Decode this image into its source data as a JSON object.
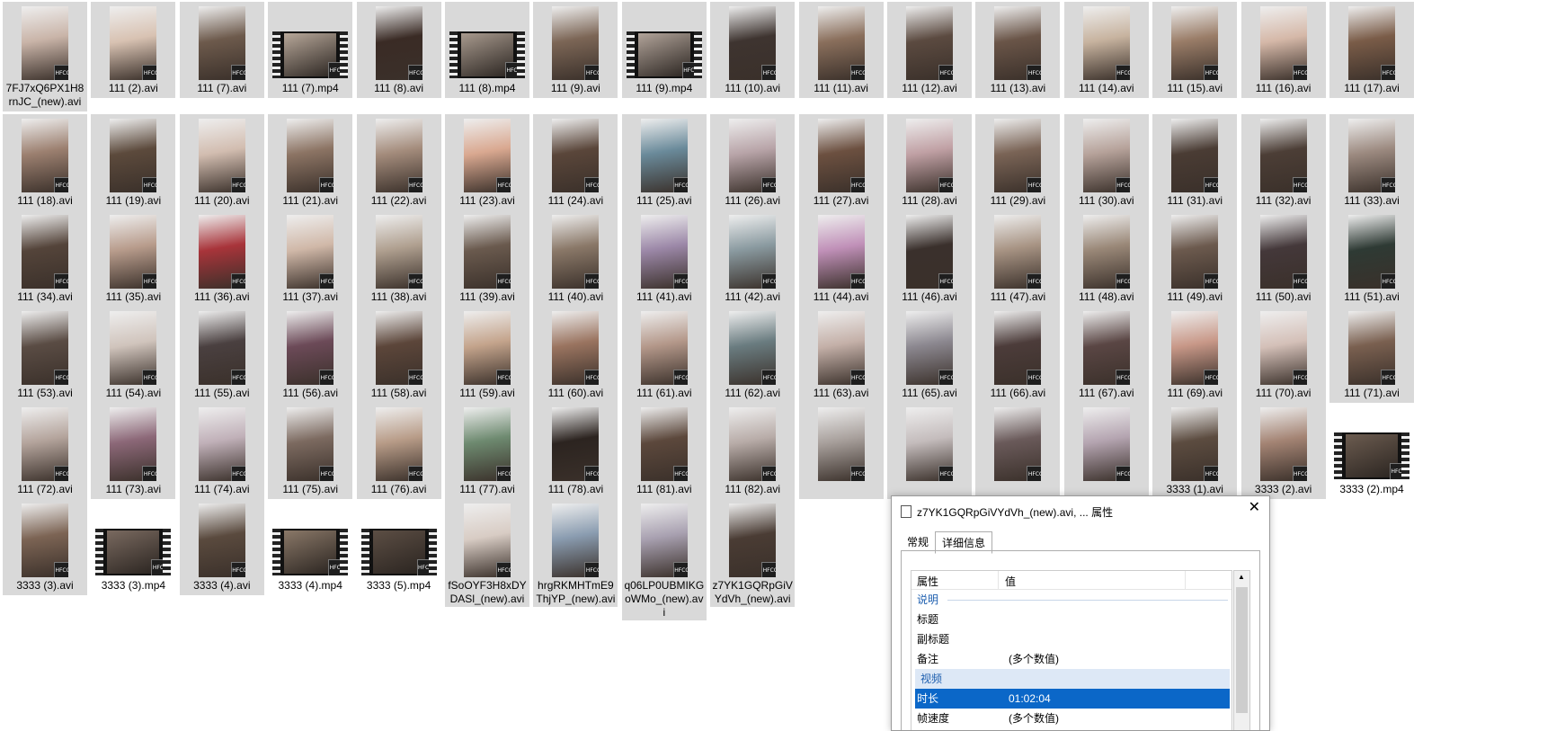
{
  "files": [
    {
      "label": "7FJ7xQ6PX1H8rnJC_(new).avi",
      "kind": "avi",
      "color": "#c9b4a8"
    },
    {
      "label": "111 (2).avi",
      "kind": "avi",
      "color": "#d8c2b2"
    },
    {
      "label": "111 (7).avi",
      "kind": "avi",
      "color": "#6d5a4c"
    },
    {
      "label": "111 (7).mp4",
      "kind": "mp4",
      "color": "#b8a89a"
    },
    {
      "label": "111 (8).avi",
      "kind": "avi",
      "color": "#3a2b25"
    },
    {
      "label": "111 (8).mp4",
      "kind": "mp4",
      "color": "#a89a8e"
    },
    {
      "label": "111 (9).avi",
      "kind": "avi",
      "color": "#7c6656"
    },
    {
      "label": "111 (9).mp4",
      "kind": "mp4",
      "color": "#b2a49a"
    },
    {
      "label": "111 (10).avi",
      "kind": "avi",
      "color": "#3e3430"
    },
    {
      "label": "111 (11).avi",
      "kind": "avi",
      "color": "#8a6f5c"
    },
    {
      "label": "111 (12).avi",
      "kind": "avi",
      "color": "#5b4a40"
    },
    {
      "label": "111 (13).avi",
      "kind": "avi",
      "color": "#6a5548"
    },
    {
      "label": "111 (14).avi",
      "kind": "avi",
      "color": "#c7b39f"
    },
    {
      "label": "111 (15).avi",
      "kind": "avi",
      "color": "#9a7d68"
    },
    {
      "label": "111 (16).avi",
      "kind": "avi",
      "color": "#d5b8a8"
    },
    {
      "label": "111 (17).avi",
      "kind": "avi",
      "color": "#7a5c48"
    },
    {
      "label": "111 (18).avi",
      "kind": "avi",
      "color": "#9c8070"
    },
    {
      "label": "111 (19).avi",
      "kind": "avi",
      "color": "#5c4a3c"
    },
    {
      "label": "111 (20).avi",
      "kind": "avi",
      "color": "#d2bdb0"
    },
    {
      "label": "111 (21).avi",
      "kind": "avi",
      "color": "#8c7464"
    },
    {
      "label": "111 (22).avi",
      "kind": "avi",
      "color": "#a48c7c"
    },
    {
      "label": "111 (23).avi",
      "kind": "avi",
      "color": "#d9a890"
    },
    {
      "label": "111 (24).avi",
      "kind": "avi",
      "color": "#5a463a"
    },
    {
      "label": "111 (25).avi",
      "kind": "avi",
      "color": "#6a8a9a"
    },
    {
      "label": "111 (26).avi",
      "kind": "avi",
      "color": "#b8a4a8"
    },
    {
      "label": "111 (27).avi",
      "kind": "avi",
      "color": "#6c5040"
    },
    {
      "label": "111 (28).avi",
      "kind": "avi",
      "color": "#c0a0a4"
    },
    {
      "label": "111 (29).avi",
      "kind": "avi",
      "color": "#7a6456"
    },
    {
      "label": "111 (30).avi",
      "kind": "avi",
      "color": "#b6a29a"
    },
    {
      "label": "111 (31).avi",
      "kind": "avi",
      "color": "#4a3c34"
    },
    {
      "label": "111 (32).avi",
      "kind": "avi",
      "color": "#4c3e36"
    },
    {
      "label": "111 (33).avi",
      "kind": "avi",
      "color": "#9c8a80"
    },
    {
      "label": "111 (34).avi",
      "kind": "avi",
      "color": "#54443a"
    },
    {
      "label": "111 (35).avi",
      "kind": "avi",
      "color": "#b89c8c"
    },
    {
      "label": "111 (36).avi",
      "kind": "avi",
      "color": "#a8343a"
    },
    {
      "label": "111 (37).avi",
      "kind": "avi",
      "color": "#d0b8a8"
    },
    {
      "label": "111 (38).avi",
      "kind": "avi",
      "color": "#b0a090"
    },
    {
      "label": "111 (39).avi",
      "kind": "avi",
      "color": "#6a5a4e"
    },
    {
      "label": "111 (40).avi",
      "kind": "avi",
      "color": "#8a7868"
    },
    {
      "label": "111 (41).avi",
      "kind": "avi",
      "color": "#9c88a8"
    },
    {
      "label": "111 (42).avi",
      "kind": "avi",
      "color": "#8a9aa0"
    },
    {
      "label": "111 (44).avi",
      "kind": "avi",
      "color": "#c090b8"
    },
    {
      "label": "111 (46).avi",
      "kind": "avi",
      "color": "#3a302c"
    },
    {
      "label": "111 (47).avi",
      "kind": "avi",
      "color": "#a89484"
    },
    {
      "label": "111 (48).avi",
      "kind": "avi",
      "color": "#9a8878"
    },
    {
      "label": "111 (49).avi",
      "kind": "avi",
      "color": "#6c5a4e"
    },
    {
      "label": "111 (50).avi",
      "kind": "avi",
      "color": "#44383a"
    },
    {
      "label": "111 (51).avi",
      "kind": "avi",
      "color": "#2e3a34"
    },
    {
      "label": "111 (53).avi",
      "kind": "avi",
      "color": "#5a4c44"
    },
    {
      "label": "111 (54).avi",
      "kind": "avi",
      "color": "#d0c4bc"
    },
    {
      "label": "111 (55).avi",
      "kind": "avi",
      "color": "#4a4040"
    },
    {
      "label": "111 (56).avi",
      "kind": "avi",
      "color": "#6c4a58"
    },
    {
      "label": "111 (58).avi",
      "kind": "avi",
      "color": "#5c463a"
    },
    {
      "label": "111 (59).avi",
      "kind": "avi",
      "color": "#c4a48c"
    },
    {
      "label": "111 (60).avi",
      "kind": "avi",
      "color": "#9a7460"
    },
    {
      "label": "111 (61).avi",
      "kind": "avi",
      "color": "#b4988a"
    },
    {
      "label": "111 (62).avi",
      "kind": "avi",
      "color": "#6a7c80"
    },
    {
      "label": "111 (63).avi",
      "kind": "avi",
      "color": "#c4b0a8"
    },
    {
      "label": "111 (65).avi",
      "kind": "avi",
      "color": "#8c8890"
    },
    {
      "label": "111 (66).avi",
      "kind": "avi",
      "color": "#4c3c3a"
    },
    {
      "label": "111 (67).avi",
      "kind": "avi",
      "color": "#5a4644"
    },
    {
      "label": "111 (69).avi",
      "kind": "avi",
      "color": "#c89888"
    },
    {
      "label": "111 (70).avi",
      "kind": "avi",
      "color": "#d4c0b8"
    },
    {
      "label": "111 (71).avi",
      "kind": "avi",
      "color": "#7a6050"
    },
    {
      "label": "111 (72).avi",
      "kind": "avi",
      "color": "#b4a49c"
    },
    {
      "label": "111 (73).avi",
      "kind": "avi",
      "color": "#8c6878"
    },
    {
      "label": "111 (74).avi",
      "kind": "avi",
      "color": "#c0b0b8"
    },
    {
      "label": "111 (75).avi",
      "kind": "avi",
      "color": "#7c6a60"
    },
    {
      "label": "111 (76).avi",
      "kind": "avi",
      "color": "#b89c88"
    },
    {
      "label": "111 (77).avi",
      "kind": "avi",
      "color": "#6e8a70"
    },
    {
      "label": "111 (78).avi",
      "kind": "avi",
      "color": "#2c2420"
    },
    {
      "label": "111 (81).avi",
      "kind": "avi",
      "color": "#5c483c"
    },
    {
      "label": "111 (82).avi",
      "kind": "avi",
      "color": "#b8aca8"
    },
    {
      "label": "",
      "kind": "avi",
      "color": "#a8a09c"
    },
    {
      "label": "",
      "kind": "avi",
      "color": "#c4bcbc"
    },
    {
      "label": "",
      "kind": "avi",
      "color": "#6a5a5a"
    },
    {
      "label": "",
      "kind": "avi",
      "color": "#b4a4b0"
    },
    {
      "label": "3333 (1).avi",
      "kind": "avi",
      "color": "#5c4c40"
    },
    {
      "label": "3333 (2).avi",
      "kind": "avi",
      "color": "#a48474"
    },
    {
      "label": "3333 (2).mp4",
      "kind": "mp4",
      "color": "#6c5c50"
    },
    {
      "label": "3333 (3).avi",
      "kind": "avi",
      "color": "#7c6454"
    },
    {
      "label": "3333 (3).mp4",
      "kind": "mp4",
      "color": "#7a6a60"
    },
    {
      "label": "3333 (4).avi",
      "kind": "avi",
      "color": "#5a4a3e"
    },
    {
      "label": "3333 (4).mp4",
      "kind": "mp4",
      "color": "#8a7868"
    },
    {
      "label": "3333 (5).mp4",
      "kind": "mp4",
      "color": "#5c4e44"
    },
    {
      "label": "fSoOYF3H8xDYDASl_(new).avi",
      "kind": "avi",
      "color": "#d8ccc4"
    },
    {
      "label": "hrgRKMHTmE9ThjYP_(new).avi",
      "kind": "avi",
      "color": "#8a9cb0"
    },
    {
      "label": "q06LP0UBMIKGoWMo_(new).avi",
      "kind": "avi",
      "color": "#a8a0b0"
    },
    {
      "label": "z7YK1GQRpGiVYdVh_(new).avi",
      "kind": "avi",
      "color": "#4a3c34"
    }
  ],
  "badge_text": "HFCOC",
  "dialog": {
    "title": "z7YK1GQRpGiVYdVh_(new).avi, ... 属性",
    "close": "✕",
    "tabs": [
      "常规",
      "详细信息"
    ],
    "active_tab": 1,
    "columns": {
      "property": "属性",
      "value": "值"
    },
    "sections": [
      {
        "group": "说明",
        "rows": [
          {
            "k": "标题",
            "v": ""
          },
          {
            "k": "副标题",
            "v": ""
          },
          {
            "k": "备注",
            "v": "(多个数值)"
          }
        ]
      },
      {
        "group": "视频",
        "rows": [
          {
            "k": "时长",
            "v": "01:02:04",
            "selected": true
          },
          {
            "k": "帧速度",
            "v": "(多个数值)"
          }
        ]
      }
    ]
  }
}
